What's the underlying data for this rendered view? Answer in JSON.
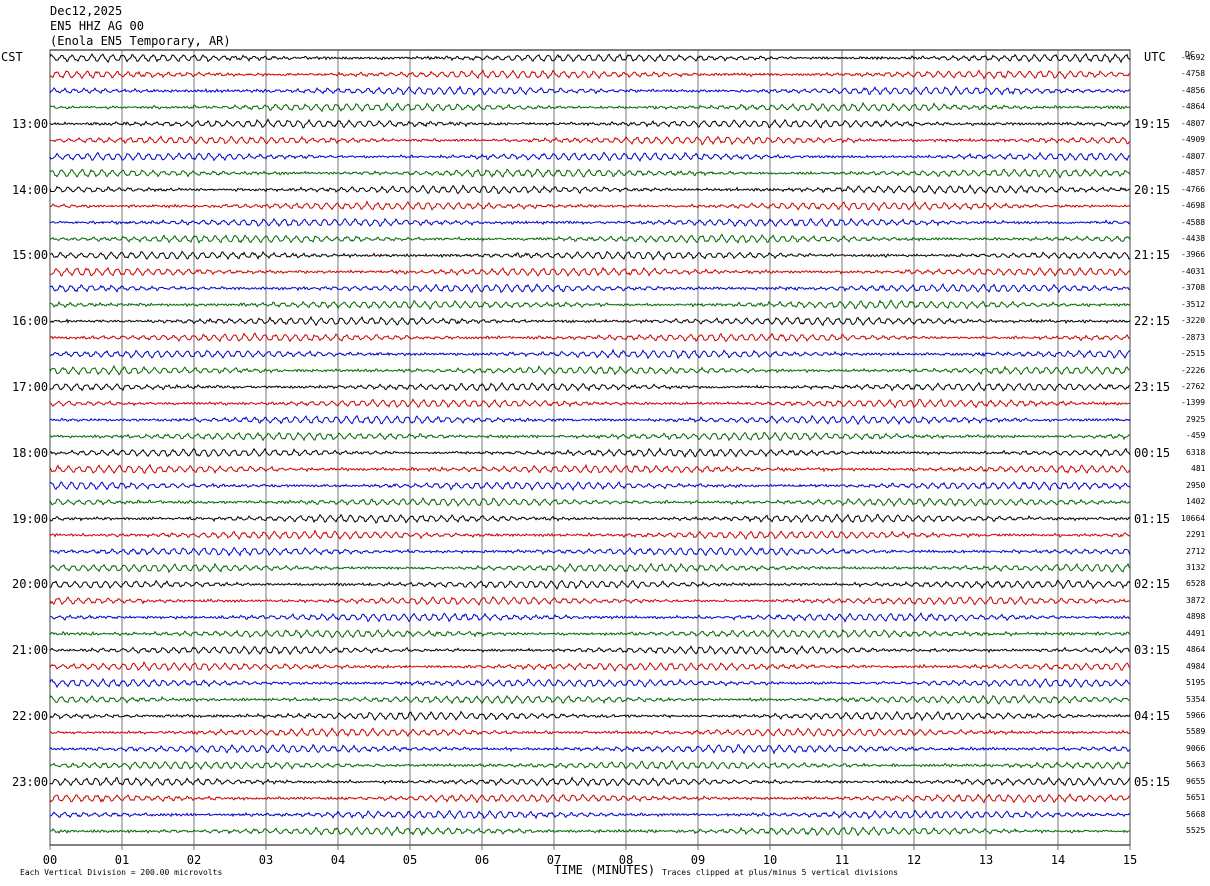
{
  "header": {
    "date": "Dec12,2025",
    "station": "EN5 HHZ AG 00",
    "location": "(Enola EN5 Temporary, AR)"
  },
  "left_zone_label": "CST",
  "right_zone_label": "UTC",
  "dc_header": "DC",
  "chart_data": {
    "type": "line",
    "title": "",
    "xlabel": "TIME (MINUTES)",
    "xlim": [
      0,
      15
    ],
    "x_ticks": [
      "00",
      "01",
      "02",
      "03",
      "04",
      "05",
      "06",
      "07",
      "08",
      "09",
      "10",
      "11",
      "12",
      "13",
      "14",
      "15"
    ],
    "rows": 48,
    "minutes_per_row": 15,
    "trace_colors": [
      "#000000",
      "#cc0000",
      "#0000cc",
      "#006600"
    ],
    "left_time_labels": [
      "13:00",
      "14:00",
      "15:00",
      "16:00",
      "17:00",
      "18:00",
      "19:00",
      "20:00",
      "21:00",
      "22:00",
      "23:00"
    ],
    "right_time_labels": [
      "19:15",
      "20:15",
      "21:15",
      "22:15",
      "23:15",
      "00:15",
      "01:15",
      "02:15",
      "03:15",
      "04:15",
      "05:15"
    ],
    "dc_offsets": [
      "-4692",
      "-4758",
      "-4856",
      "-4864",
      "-4807",
      "-4909",
      "-4807",
      "-4857",
      "-4766",
      "-4698",
      "-4588",
      "-4438",
      "-3966",
      "-4031",
      "-3708",
      "-3512",
      "-3220",
      "-2873",
      "-2515",
      "-2226",
      "-2762",
      "-1399",
      "2925",
      "-459",
      "6318",
      "481",
      "2950",
      "1402",
      "10664",
      "2291",
      "2712",
      "3132",
      "6528",
      "3872",
      "4898",
      "4491",
      "4864",
      "4984",
      "5195",
      "5354",
      "5966",
      "5589",
      "9066",
      "5663",
      "9655",
      "5651",
      "5668",
      "5525"
    ]
  },
  "footer": {
    "scale_note": "Each Vertical Division = 200.00 microvolts",
    "clip_note": "Traces clipped at plus/minus 5 vertical divisions"
  }
}
